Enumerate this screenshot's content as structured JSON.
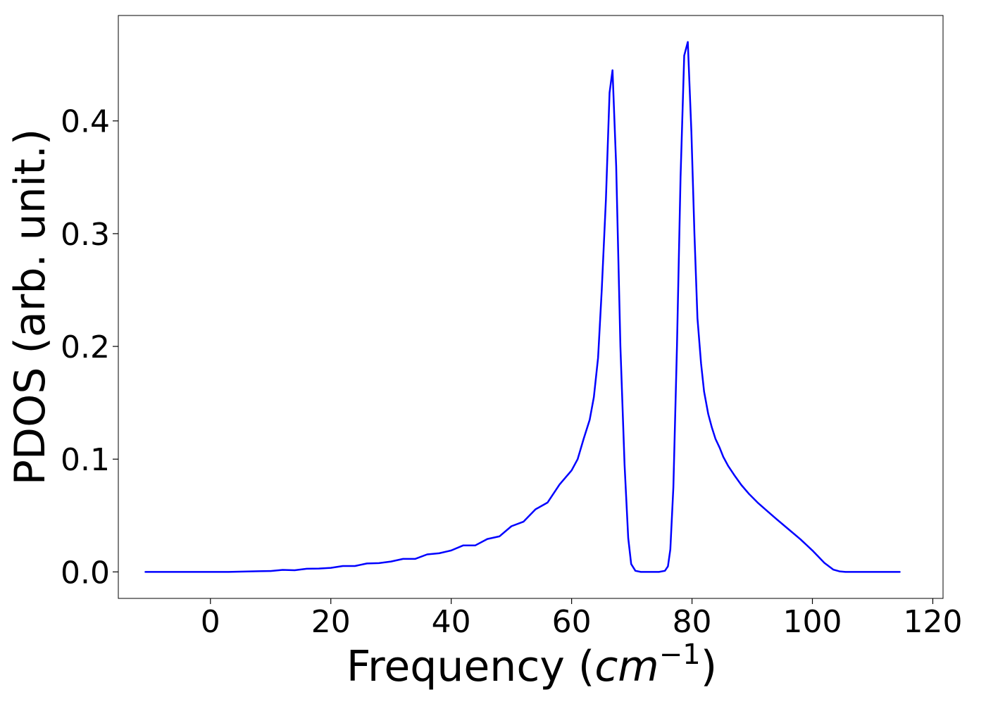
{
  "chart_data": {
    "type": "line",
    "title": "",
    "xlabel_text": "Frequency (",
    "xlabel_unit_base": "cm",
    "xlabel_unit_exp": "−1",
    "xlabel_close": ")",
    "ylabel": "PDOS (arb. unit.)",
    "xlim": [
      -15.3,
      121.7
    ],
    "ylim": [
      -0.0235,
      0.4935
    ],
    "xticks": [
      0,
      20,
      40,
      60,
      80,
      100,
      120
    ],
    "xtick_labels": [
      "0",
      "20",
      "40",
      "60",
      "80",
      "100",
      "120"
    ],
    "yticks": [
      0.0,
      0.1,
      0.2,
      0.3,
      0.4
    ],
    "ytick_labels": [
      "0.0",
      "0.1",
      "0.2",
      "0.3",
      "0.4"
    ],
    "grid": false,
    "legend": "none",
    "series": [
      {
        "color": "#0000ff",
        "x": [
          -10.8,
          -5,
          0,
          3,
          8,
          10,
          12,
          14,
          16,
          18,
          20,
          22,
          24,
          26,
          28,
          30,
          32,
          34,
          36,
          38,
          40,
          42,
          44,
          46,
          48,
          50,
          52,
          54,
          56,
          58,
          60,
          61,
          62,
          63,
          63.7,
          64.4,
          65,
          65.7,
          66.3,
          66.8,
          67.4,
          68.1,
          68.8,
          69.4,
          69.9,
          70.6,
          71.5,
          72.5,
          73.5,
          74.5,
          75.5,
          76,
          76.4,
          76.9,
          77.5,
          78.1,
          78.7,
          79.3,
          79.9,
          80.4,
          80.9,
          81.5,
          82,
          82.7,
          83.3,
          83.9,
          84.6,
          85.2,
          86,
          87,
          88.2,
          89.5,
          91,
          92.5,
          94,
          96,
          98,
          100,
          102,
          103.5,
          104.5,
          105.5,
          106.5,
          108,
          110,
          114.5
        ],
        "y": [
          0.0,
          0.0,
          0.0,
          0.0,
          0.0006,
          0.0008,
          0.0018,
          0.0015,
          0.0028,
          0.003,
          0.0036,
          0.0052,
          0.0052,
          0.0075,
          0.0078,
          0.0092,
          0.0115,
          0.0115,
          0.0155,
          0.0165,
          0.019,
          0.0235,
          0.0235,
          0.0292,
          0.0315,
          0.0405,
          0.0445,
          0.0555,
          0.0615,
          0.0775,
          0.09,
          0.1,
          0.118,
          0.135,
          0.155,
          0.19,
          0.25,
          0.33,
          0.425,
          0.445,
          0.36,
          0.2,
          0.095,
          0.03,
          0.007,
          0.001,
          0.0,
          0.0,
          0.0,
          0.0,
          0.001,
          0.005,
          0.02,
          0.075,
          0.2,
          0.35,
          0.458,
          0.47,
          0.39,
          0.3,
          0.225,
          0.185,
          0.16,
          0.14,
          0.128,
          0.118,
          0.11,
          0.102,
          0.094,
          0.086,
          0.077,
          0.069,
          0.061,
          0.054,
          0.047,
          0.038,
          0.029,
          0.019,
          0.008,
          0.002,
          0.0005,
          0.0,
          0.0,
          0.0,
          0.0,
          0.0
        ]
      }
    ]
  }
}
